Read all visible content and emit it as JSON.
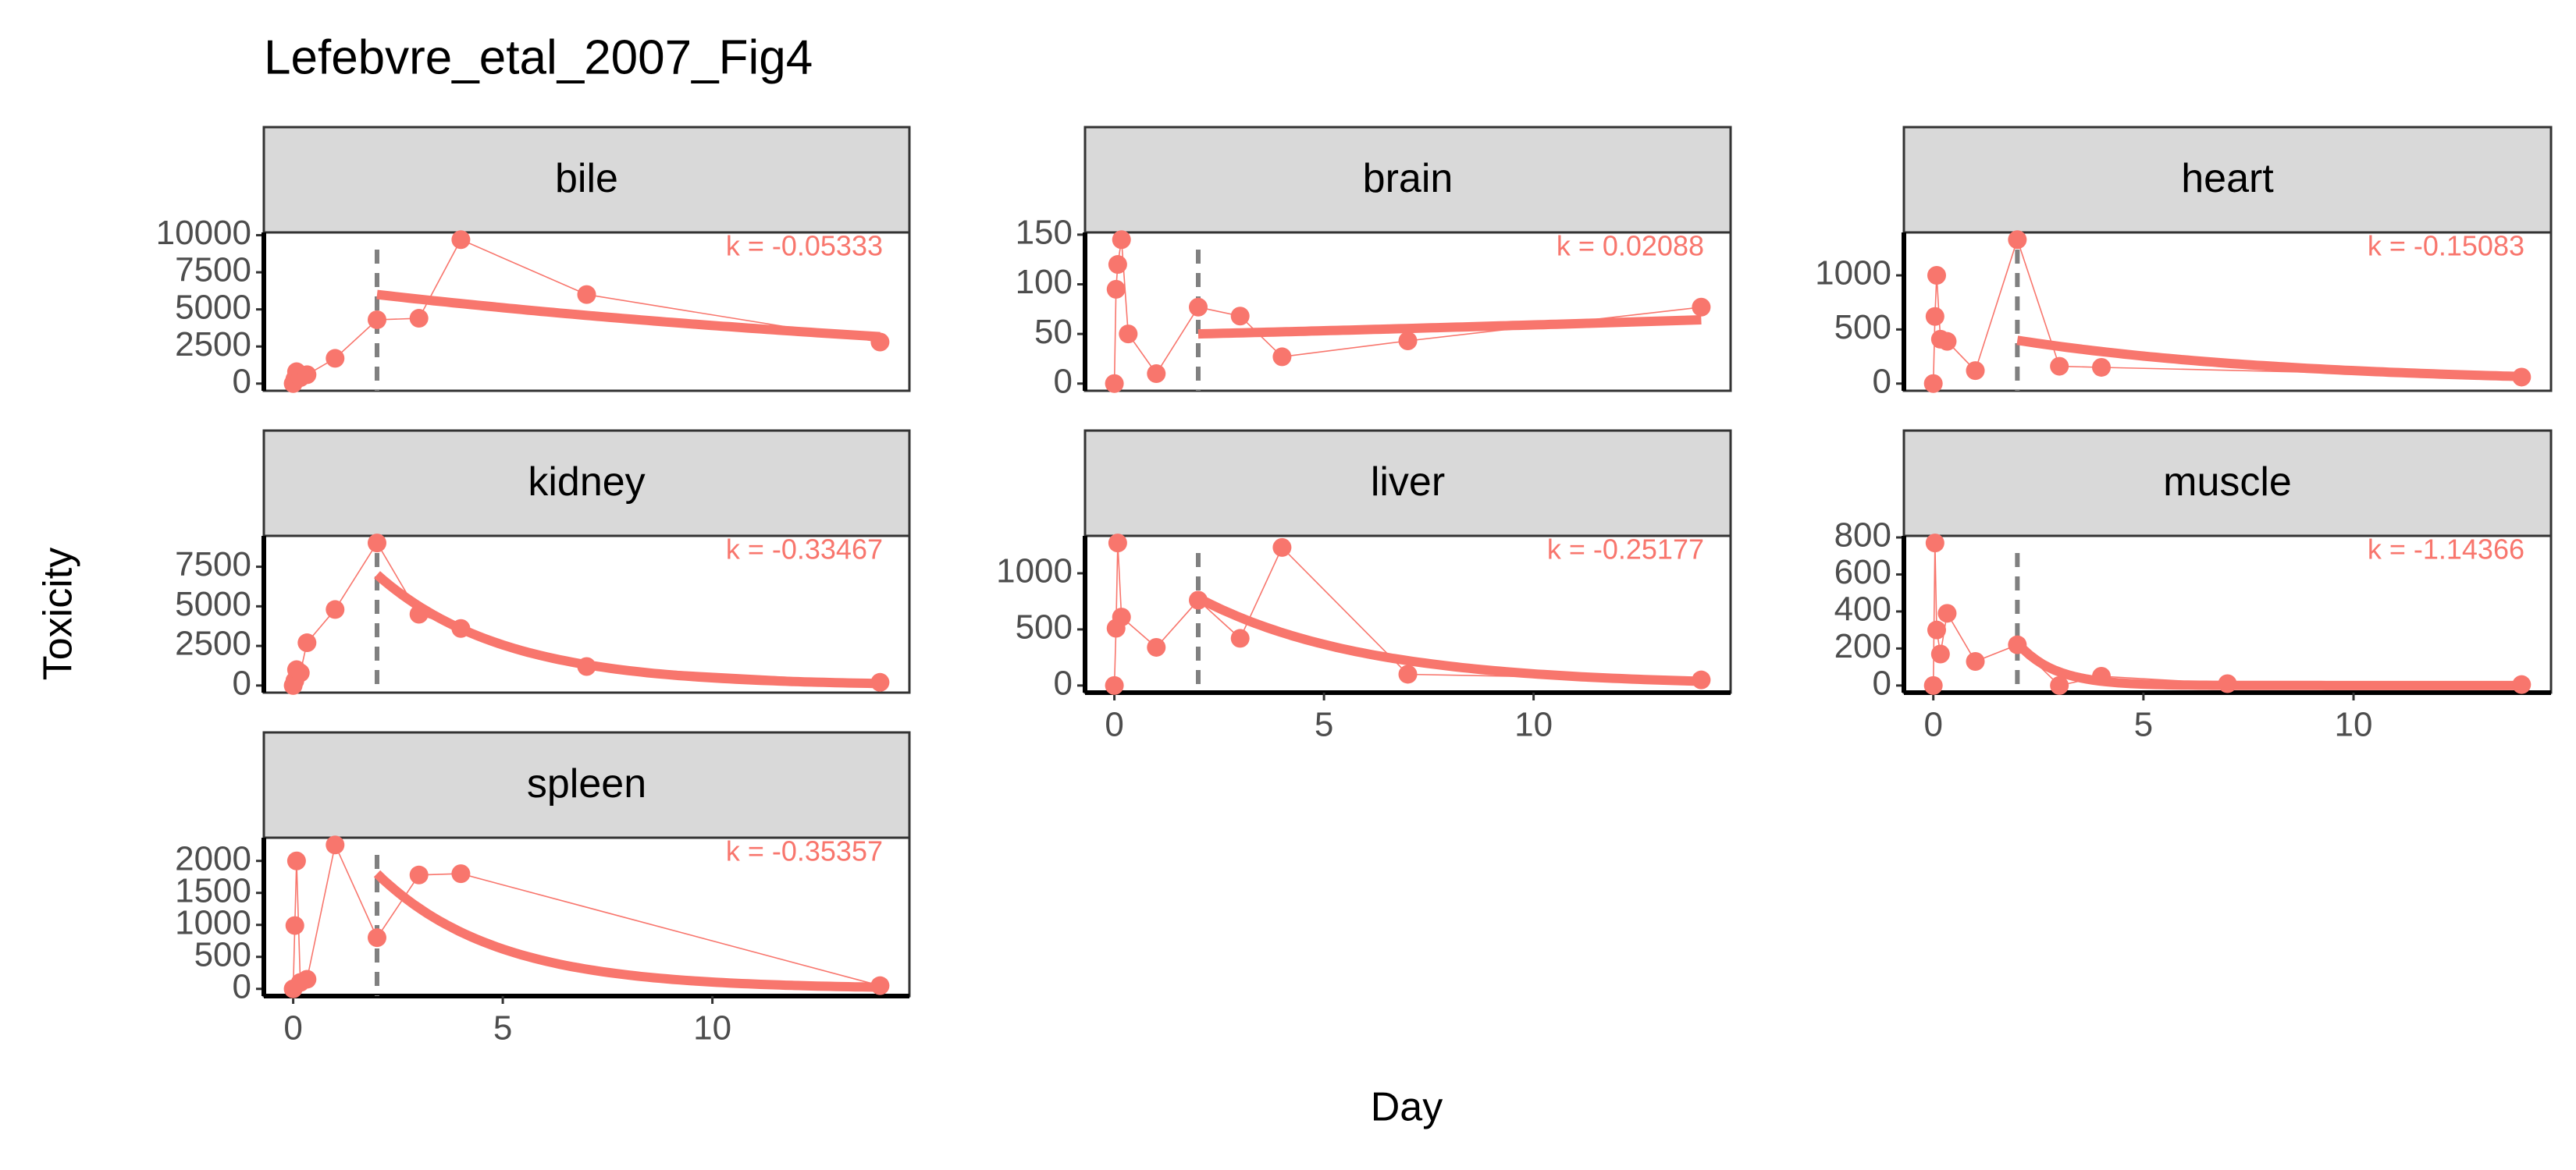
{
  "chart_data": {
    "type": "line",
    "title": "Lefebvre_etal_2007_Fig4",
    "x_label": "Day",
    "y_label": "Toxicity",
    "xlim": [
      -0.7,
      14.7
    ],
    "xticks": [
      0,
      5,
      10
    ],
    "color": "#F8766D",
    "panels": [
      {
        "name": "bile",
        "x": [
          0,
          0.04,
          0.08,
          0.17,
          0.33,
          1,
          2,
          3,
          4,
          7,
          14
        ],
        "values": [
          0,
          300,
          800,
          400,
          600,
          1700,
          4300,
          4400,
          9700,
          6000,
          2800
        ],
        "ylim": [
          -485,
          10185
        ],
        "yticks": [
          0,
          2500,
          5000,
          7500,
          10000
        ],
        "fit": {
          "start": 2,
          "end": 14,
          "initial": 6000,
          "k": -0.05333,
          "label": "k = -0.05333"
        }
      },
      {
        "name": "brain",
        "x": [
          0,
          0.04,
          0.08,
          0.17,
          0.33,
          1,
          2,
          3,
          4,
          7,
          14
        ],
        "values": [
          0,
          95,
          120,
          145,
          50,
          10,
          77,
          68,
          27,
          43,
          77
        ],
        "ylim": [
          -7.25,
          152.25
        ],
        "yticks": [
          0,
          50,
          100,
          150
        ],
        "fit": {
          "start": 2,
          "end": 14,
          "initial": 50,
          "k": 0.02088,
          "label": "k = 0.02088"
        }
      },
      {
        "name": "heart",
        "x": [
          0,
          0.04,
          0.08,
          0.17,
          0.33,
          1,
          2,
          3,
          4,
          14
        ],
        "values": [
          0,
          620,
          1000,
          410,
          390,
          120,
          1330,
          160,
          150,
          60
        ],
        "ylim": [
          -66.5,
          1396.5
        ],
        "yticks": [
          0,
          500,
          1000
        ],
        "fit": {
          "start": 2,
          "end": 14,
          "initial": 400,
          "k": -0.15083,
          "label": "k = -0.15083"
        }
      },
      {
        "name": "kidney",
        "x": [
          0,
          0.04,
          0.08,
          0.17,
          0.33,
          1,
          2,
          3,
          4,
          7,
          14
        ],
        "values": [
          0,
          300,
          1000,
          800,
          2700,
          4800,
          9000,
          4500,
          3600,
          1200,
          200
        ],
        "ylim": [
          -450,
          9450
        ],
        "yticks": [
          0,
          2500,
          5000,
          7500
        ],
        "fit": {
          "start": 2,
          "end": 14,
          "initial": 7000,
          "k": -0.33467,
          "label": "k = -0.33467"
        }
      },
      {
        "name": "liver",
        "x": [
          0,
          0.04,
          0.08,
          0.17,
          1,
          2,
          3,
          4,
          7,
          14
        ],
        "values": [
          0,
          510,
          1270,
          610,
          340,
          760,
          420,
          1230,
          100,
          50
        ],
        "ylim": [
          -63.5,
          1333.5
        ],
        "yticks": [
          0,
          500,
          1000
        ],
        "fit": {
          "start": 2,
          "end": 14,
          "initial": 780,
          "k": -0.25177,
          "label": "k = -0.25177"
        }
      },
      {
        "name": "muscle",
        "x": [
          0,
          0.04,
          0.08,
          0.17,
          0.33,
          1,
          2,
          3,
          4,
          7,
          14
        ],
        "values": [
          0,
          770,
          300,
          170,
          390,
          130,
          220,
          0,
          50,
          10,
          5
        ],
        "ylim": [
          -38.5,
          808.5
        ],
        "yticks": [
          0,
          200,
          400,
          600,
          800
        ],
        "fit": {
          "start": 2,
          "end": 14,
          "initial": 230,
          "k": -1.14366,
          "label": "k = -1.14366"
        }
      },
      {
        "name": "spleen",
        "x": [
          0,
          0.04,
          0.08,
          0.17,
          0.33,
          1,
          2,
          3,
          4,
          14
        ],
        "values": [
          0,
          990,
          2000,
          100,
          150,
          2250,
          800,
          1780,
          1800,
          50
        ],
        "ylim": [
          -112.5,
          2362.5
        ],
        "yticks": [
          0,
          500,
          1000,
          1500,
          2000
        ],
        "fit": {
          "start": 2,
          "end": 14,
          "initial": 1800,
          "k": -0.35357,
          "label": "k = -0.35357"
        }
      }
    ]
  }
}
